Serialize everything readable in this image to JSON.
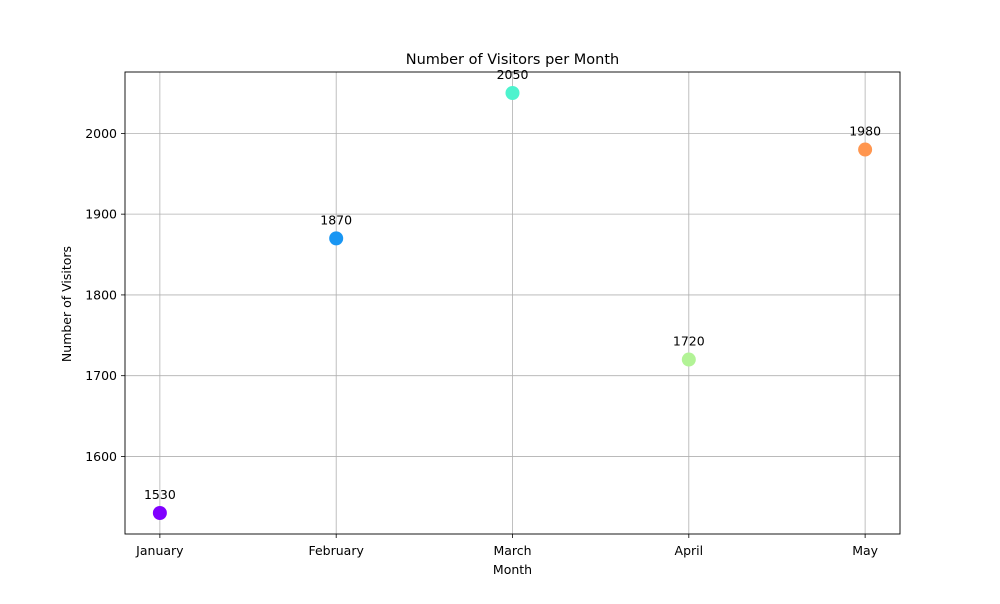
{
  "chart_data": {
    "type": "scatter",
    "title": "Number of Visitors per Month",
    "xlabel": "Month",
    "ylabel": "Number of Visitors",
    "categories": [
      "January",
      "February",
      "March",
      "April",
      "May"
    ],
    "values": [
      1530,
      1870,
      2050,
      1720,
      1980
    ],
    "point_labels": [
      "1530",
      "1870",
      "2050",
      "1720",
      "1980"
    ],
    "point_colors": [
      "#8000ff",
      "#1996f3",
      "#4df3ce",
      "#b2f396",
      "#ff964f"
    ],
    "y_ticks": [
      1600,
      1700,
      1800,
      1900,
      2000
    ],
    "y_tick_labels": [
      "1600",
      "1700",
      "1800",
      "1900",
      "2000"
    ],
    "ylim": [
      1504,
      2076
    ],
    "grid": true,
    "legend": "none"
  }
}
